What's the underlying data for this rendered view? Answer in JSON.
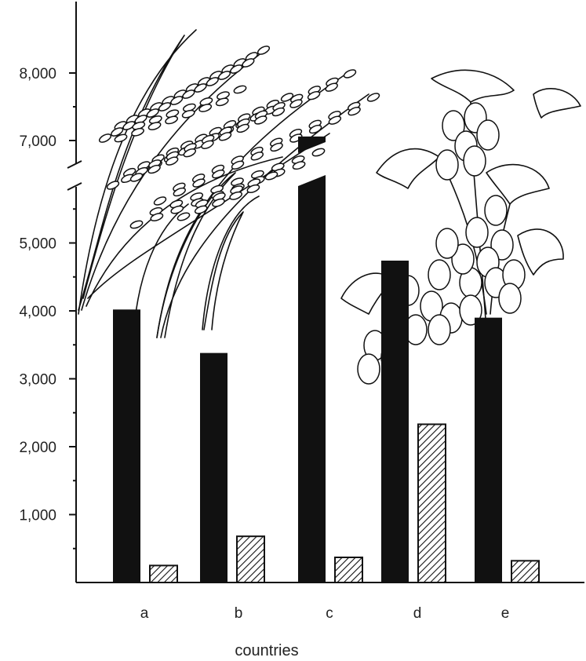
{
  "chart_data": {
    "type": "bar",
    "categories": [
      "a",
      "b",
      "c",
      "d",
      "e"
    ],
    "xlabel": "countries",
    "ylabel": "",
    "ylim": [
      0,
      8000
    ],
    "axis_break": true,
    "yticks": [
      {
        "value": 1000,
        "label": "1,000"
      },
      {
        "value": 2000,
        "label": "2,000"
      },
      {
        "value": 3000,
        "label": "3,000"
      },
      {
        "value": 4000,
        "label": "4,000"
      },
      {
        "value": 5000,
        "label": "5,000"
      },
      {
        "value": 7000,
        "label": "7,000"
      },
      {
        "value": 8000,
        "label": "8,000"
      }
    ],
    "series": [
      {
        "fill": "solid",
        "color": "#111111",
        "values": [
          4020,
          3380,
          7060,
          4740,
          3900
        ]
      },
      {
        "fill": "hatched",
        "color": "#111111",
        "values": [
          250,
          680,
          370,
          2330,
          320
        ]
      }
    ]
  },
  "illustrations": {
    "left": "rice-plant-icon",
    "right": "fruit-plant-icon"
  }
}
